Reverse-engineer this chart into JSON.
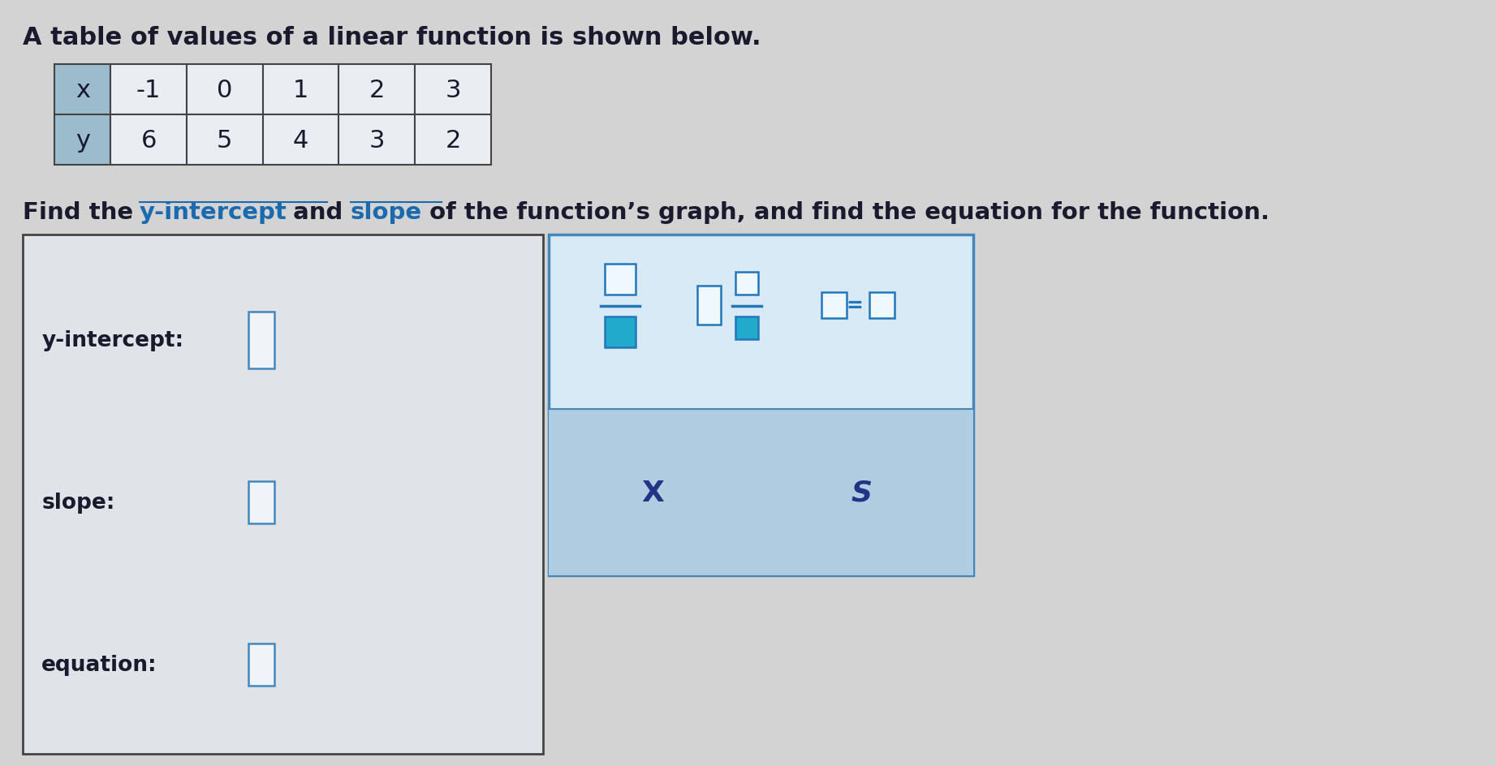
{
  "bg_color": "#d3d3d3",
  "title_text": "A table of values of a linear function is shown below.",
  "title_fontsize": 22,
  "title_color": "#1a1a2e",
  "table_x_values": [
    "x",
    "-1",
    "0",
    "1",
    "2",
    "3"
  ],
  "table_y_values": [
    "y",
    "6",
    "5",
    "4",
    "3",
    "2"
  ],
  "table_header_bg": "#9bbccc",
  "table_cell_bg": "#e8eef2",
  "table_border_color": "#444444",
  "instruction_parts": [
    {
      "text": "Find the ",
      "color": "#1a1a2e",
      "underline": false
    },
    {
      "text": "y-intercept",
      "color": "#1a6aad",
      "underline": true
    },
    {
      "text": " and ",
      "color": "#1a1a2e",
      "underline": false
    },
    {
      "text": "slope",
      "color": "#1a6aad",
      "underline": true
    },
    {
      "text": " of the function’s graph, and find the equation for the function.",
      "color": "#1a1a2e",
      "underline": false
    }
  ],
  "instruction_fontsize": 21,
  "label_y_intercept": "y-intercept:",
  "label_slope": "slope:",
  "label_equation": "equation:",
  "label_fontsize": 19,
  "label_color": "#1a1a2e",
  "answer_box_bg": "#e0e4e8",
  "answer_box_border": "#444444",
  "input_box_border": "#4488bb",
  "input_box_fill": "#f0f4f8",
  "toolbar_border": "#4488bb",
  "toolbar_upper_bg": "#d8eaf5",
  "toolbar_lower_bg": "#b0cce0",
  "frac_box_outline": "#2277bb",
  "frac_box_fill_white": "#f0f8ff",
  "frac_box_fill_teal": "#22aacc",
  "x_color": "#223388",
  "s_color": "#223388"
}
